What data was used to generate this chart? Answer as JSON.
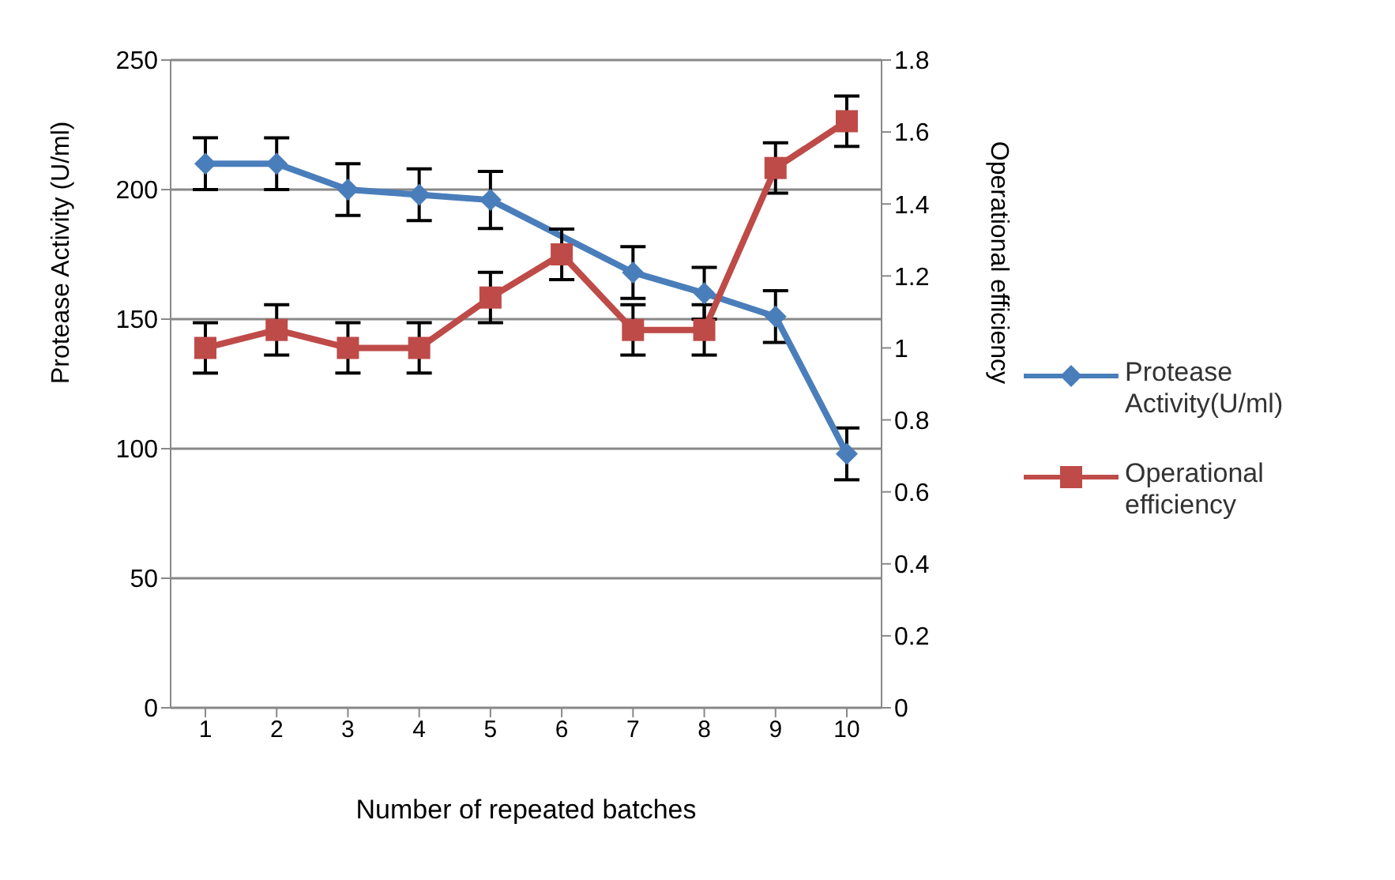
{
  "chart_data": {
    "type": "line",
    "xlabel": "Number of repeated batches",
    "ylabel": "Protease Activity (U/ml)",
    "y2label": "Operational efficiency",
    "categories": [
      "1",
      "2",
      "3",
      "4",
      "5",
      "6",
      "7",
      "8",
      "9",
      "10"
    ],
    "series": [
      {
        "name": "Protease Activity(U/ml)",
        "color": "#4a7ebb",
        "marker": "diamond",
        "values": [
          210,
          210,
          200,
          198,
          196,
          null,
          168,
          160,
          151,
          98
        ],
        "errors": [
          10,
          10,
          10,
          10,
          11,
          null,
          10,
          10,
          10,
          10
        ]
      },
      {
        "name": "Operational efficiency",
        "color": "#be4b48",
        "marker": "square",
        "axis": "y2",
        "values": [
          1.0,
          1.05,
          1.0,
          1.0,
          1.14,
          1.26,
          1.05,
          1.05,
          1.5,
          1.63
        ],
        "errors": [
          0.07,
          0.07,
          0.07,
          0.07,
          0.07,
          0.07,
          0.07,
          0.07,
          0.07,
          0.07
        ]
      }
    ],
    "ylim": [
      0,
      250
    ],
    "yticks": [
      0,
      50,
      100,
      150,
      200,
      250
    ],
    "y2lim": [
      0,
      1.8
    ],
    "y2ticks": [
      0,
      0.2,
      0.4,
      0.6,
      0.8,
      1,
      1.2,
      1.4,
      1.6,
      1.8
    ],
    "grid": "y",
    "legend": "right"
  }
}
